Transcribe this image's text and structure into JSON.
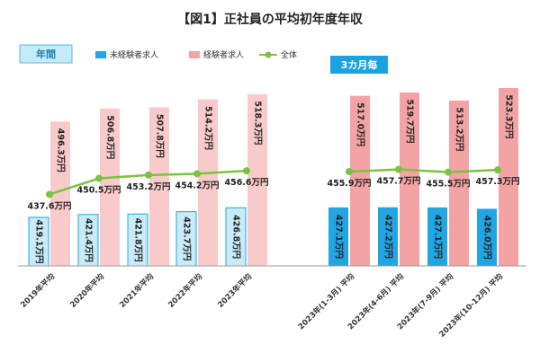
{
  "title": "【図1】正社員の平均初年度年収",
  "tags": {
    "annual": "年間",
    "quarterly": "3カ月毎"
  },
  "colors": {
    "inexperienced": "#21a5e3",
    "inexperienced_light": "#c8ebf7",
    "experienced": "#f4a3a5",
    "experienced_light": "#f9caca",
    "overall": "#7cc242",
    "tag_annual_bg": "#c5ecf5",
    "tag_annual_text": "#1b7fb0",
    "tag_quarterly_bg": "#1aa3e0"
  },
  "chart_data": {
    "type": "bar",
    "categories": [
      "2019年平均",
      "2020年平均",
      "2021年平均",
      "2022年平均",
      "2023年平均",
      "2023年(1-3月) 平均",
      "2023年(4-6月) 平均",
      "2023年(7-9月) 平均",
      "2023年(10-12月) 平均"
    ],
    "unit": "万円",
    "ylim": [
      380,
      530
    ],
    "series": [
      {
        "name": "未経験者求人",
        "values": [
          419.1,
          421.4,
          421.8,
          423.7,
          426.8,
          427.1,
          427.2,
          427.1,
          426.0
        ],
        "labels": [
          "419.1万円",
          "421.4万円",
          "421.8万円",
          "423.7万円",
          "426.8万円",
          "427.1万円",
          "427.2万円",
          "427.1万円",
          "426.0万円"
        ]
      },
      {
        "name": "経験者求人",
        "values": [
          496.3,
          506.8,
          507.8,
          514.2,
          518.3,
          517.0,
          519.7,
          513.2,
          523.3
        ],
        "labels": [
          "496.3万円",
          "506.8万円",
          "507.8万円",
          "514.2万円",
          "518.3万円",
          "517.0万円",
          "519.7万円",
          "513.2万円",
          "523.3万円"
        ]
      },
      {
        "name": "全体",
        "type": "line",
        "values": [
          437.6,
          450.5,
          453.2,
          454.2,
          456.6,
          455.9,
          457.7,
          455.5,
          457.3
        ],
        "labels": [
          "437.6万円",
          "450.5万円",
          "453.2万円",
          "454.2万円",
          "456.6万円",
          "455.9万円",
          "457.7万円",
          "455.5万円",
          "457.3万円"
        ]
      }
    ],
    "legend_position": "top",
    "grid": false
  }
}
